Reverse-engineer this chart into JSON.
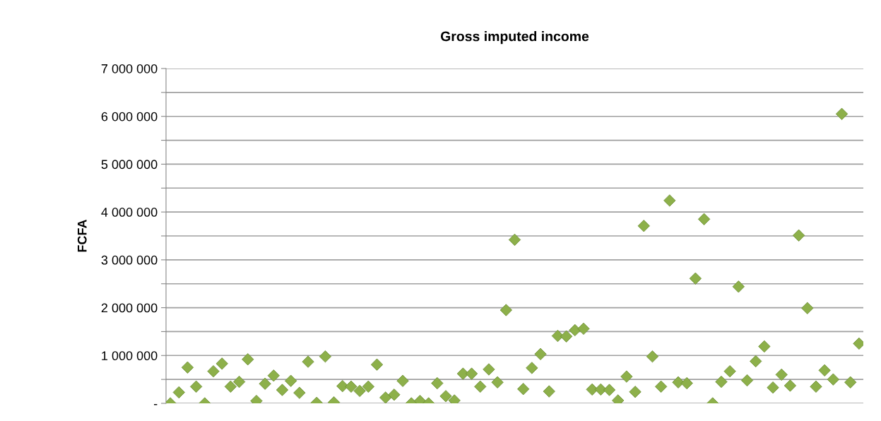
{
  "chart_data": {
    "type": "scatter",
    "title": "Gross imputed income",
    "ylabel": "FCFA",
    "categories": [
      null,
      null,
      null,
      null,
      null,
      null,
      null,
      null,
      null,
      null,
      null,
      null,
      null,
      null,
      null,
      null,
      null,
      null,
      null,
      null,
      null,
      null,
      null,
      null,
      null,
      null,
      null,
      null,
      null,
      null,
      null,
      null,
      null,
      null,
      null,
      null,
      null,
      null,
      null,
      null,
      null,
      null,
      null,
      null,
      null,
      null,
      null,
      null,
      null,
      null,
      null,
      null,
      null,
      null,
      null,
      null,
      null,
      null,
      null,
      null,
      null,
      null,
      null,
      null,
      null,
      null,
      null,
      null,
      null,
      null,
      null,
      null,
      null,
      null,
      null,
      null,
      null,
      null,
      null,
      null,
      null
    ],
    "values": [
      0,
      230000,
      750000,
      350000,
      0,
      670000,
      830000,
      350000,
      450000,
      920000,
      50000,
      410000,
      580000,
      280000,
      470000,
      220000,
      870000,
      10000,
      980000,
      20000,
      360000,
      350000,
      260000,
      350000,
      810000,
      120000,
      180000,
      470000,
      0,
      50000,
      0,
      420000,
      150000,
      60000,
      620000,
      620000,
      350000,
      710000,
      440000,
      1950000,
      3420000,
      300000,
      740000,
      1030000,
      250000,
      1410000,
      1400000,
      1530000,
      1560000,
      290000,
      290000,
      280000,
      60000,
      560000,
      240000,
      3710000,
      980000,
      350000,
      4240000,
      440000,
      420000,
      2610000,
      3850000,
      0,
      450000,
      670000,
      2440000,
      480000,
      880000,
      1190000,
      330000,
      600000,
      370000,
      3510000,
      1990000,
      350000,
      690000,
      500000,
      6050000,
      440000,
      1250000
    ],
    "color": "#8db04a",
    "marker": "diamond",
    "grid": "y",
    "ylim": [
      0,
      7000000
    ],
    "yticks": [
      {
        "value": 0,
        "label": "-"
      },
      {
        "value": 500000,
        "label": null
      },
      {
        "value": 1000000,
        "label": "1 000 000"
      },
      {
        "value": 1500000,
        "label": null
      },
      {
        "value": 2000000,
        "label": "2 000 000"
      },
      {
        "value": 2500000,
        "label": null
      },
      {
        "value": 3000000,
        "label": "3 000 000"
      },
      {
        "value": 3500000,
        "label": null
      },
      {
        "value": 4000000,
        "label": "4 000 000"
      },
      {
        "value": 4500000,
        "label": null
      },
      {
        "value": 5000000,
        "label": "5 000 000"
      },
      {
        "value": 5500000,
        "label": null
      },
      {
        "value": 6000000,
        "label": "6 000 000"
      },
      {
        "value": 6500000,
        "label": null
      },
      {
        "value": 7000000,
        "label": "7 000 000"
      }
    ]
  }
}
